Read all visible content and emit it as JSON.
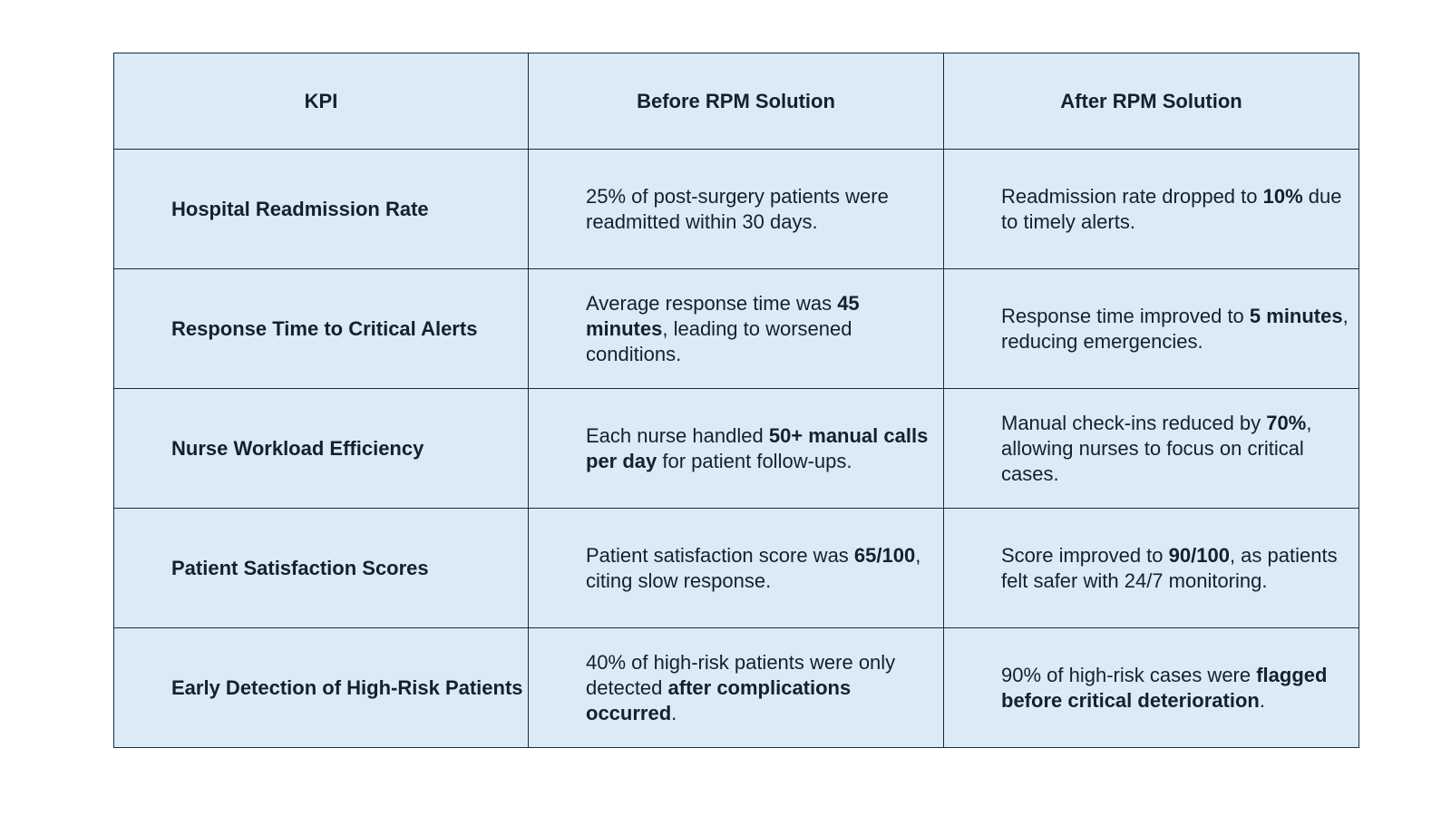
{
  "table": {
    "headers": [
      "KPI",
      "Before RPM Solution",
      "After RPM Solution"
    ],
    "rows": [
      {
        "kpi": "Hospital Readmission Rate",
        "before": [
          {
            "t": "25% of post-surgery patients were readmitted within 30 days.",
            "b": false
          }
        ],
        "after": [
          {
            "t": "Readmission rate dropped to ",
            "b": false
          },
          {
            "t": "10%",
            "b": true
          },
          {
            "t": " due to timely alerts.",
            "b": false
          }
        ]
      },
      {
        "kpi": "Response Time to Critical Alerts",
        "before": [
          {
            "t": "Average response time was ",
            "b": false
          },
          {
            "t": "45 minutes",
            "b": true
          },
          {
            "t": ", leading to worsened conditions.",
            "b": false
          }
        ],
        "after": [
          {
            "t": "Response time improved to ",
            "b": false
          },
          {
            "t": "5 minutes",
            "b": true
          },
          {
            "t": ", reducing emergencies.",
            "b": false
          }
        ]
      },
      {
        "kpi": "Nurse Workload Efficiency",
        "before": [
          {
            "t": "Each nurse handled ",
            "b": false
          },
          {
            "t": "50+ manual calls per day",
            "b": true
          },
          {
            "t": " for patient follow-ups.",
            "b": false
          }
        ],
        "after": [
          {
            "t": "Manual check-ins reduced by ",
            "b": false
          },
          {
            "t": "70%",
            "b": true
          },
          {
            "t": ", allowing nurses to focus on critical cases.",
            "b": false
          }
        ]
      },
      {
        "kpi": "Patient Satisfaction Scores",
        "before": [
          {
            "t": "Patient satisfaction score was ",
            "b": false
          },
          {
            "t": "65/100",
            "b": true
          },
          {
            "t": ", citing slow response.",
            "b": false
          }
        ],
        "after": [
          {
            "t": "Score improved to ",
            "b": false
          },
          {
            "t": "90/100",
            "b": true
          },
          {
            "t": ", as patients felt safer with 24/7 monitoring.",
            "b": false
          }
        ]
      },
      {
        "kpi": "Early Detection of High-Risk Patients",
        "before": [
          {
            "t": "40% of high-risk patients were only detected ",
            "b": false
          },
          {
            "t": "after complications occurred",
            "b": true
          },
          {
            "t": ".",
            "b": false
          }
        ],
        "after": [
          {
            "t": "90% of high-risk cases were ",
            "b": false
          },
          {
            "t": "flagged before critical deterioration",
            "b": true
          },
          {
            "t": ".",
            "b": false
          }
        ]
      }
    ]
  }
}
